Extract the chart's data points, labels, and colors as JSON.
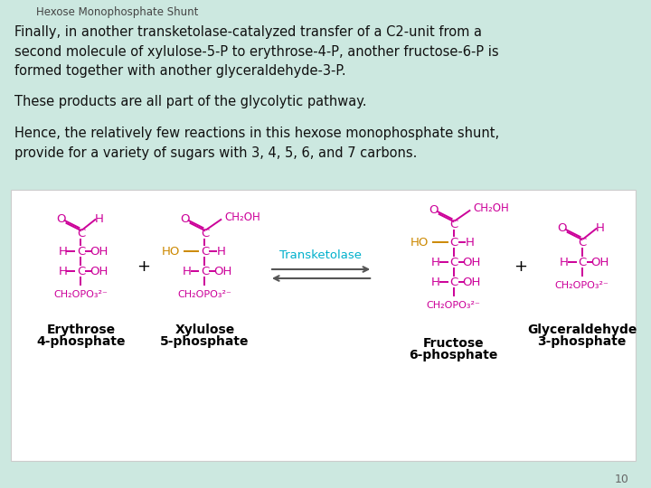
{
  "background_color": "#cce8e0",
  "title": "Hexose Monophosphate Shunt",
  "title_fontsize": 8.5,
  "title_style": "italic",
  "title_color": "#444444",
  "text_block1": "Finally, in another transketolase-catalyzed transfer of a C2-unit from a\nsecond molecule of xylulose-5-P to erythrose-4-P, another fructose-6-P is\nformed together with another glyceraldehyde-3-P.",
  "text_block2": "These products are all part of the glycolytic pathway.",
  "text_block3": "Hence, the relatively few reactions in this hexose monophosphate shunt,\nprovide for a variety of sugars with 3, 4, 5, 6, and 7 carbons.",
  "text_fontsize": 10.5,
  "text_color": "#111111",
  "diagram_bg": "#ffffff",
  "diagram_border": "#cccccc",
  "page_number": "10",
  "arrow_color": "#555555",
  "transketolase_color": "#00b0cc",
  "structure_color": "#cc0099",
  "ho_color": "#cc8800",
  "label_color": "#000000",
  "label_fontsize": 10.0
}
